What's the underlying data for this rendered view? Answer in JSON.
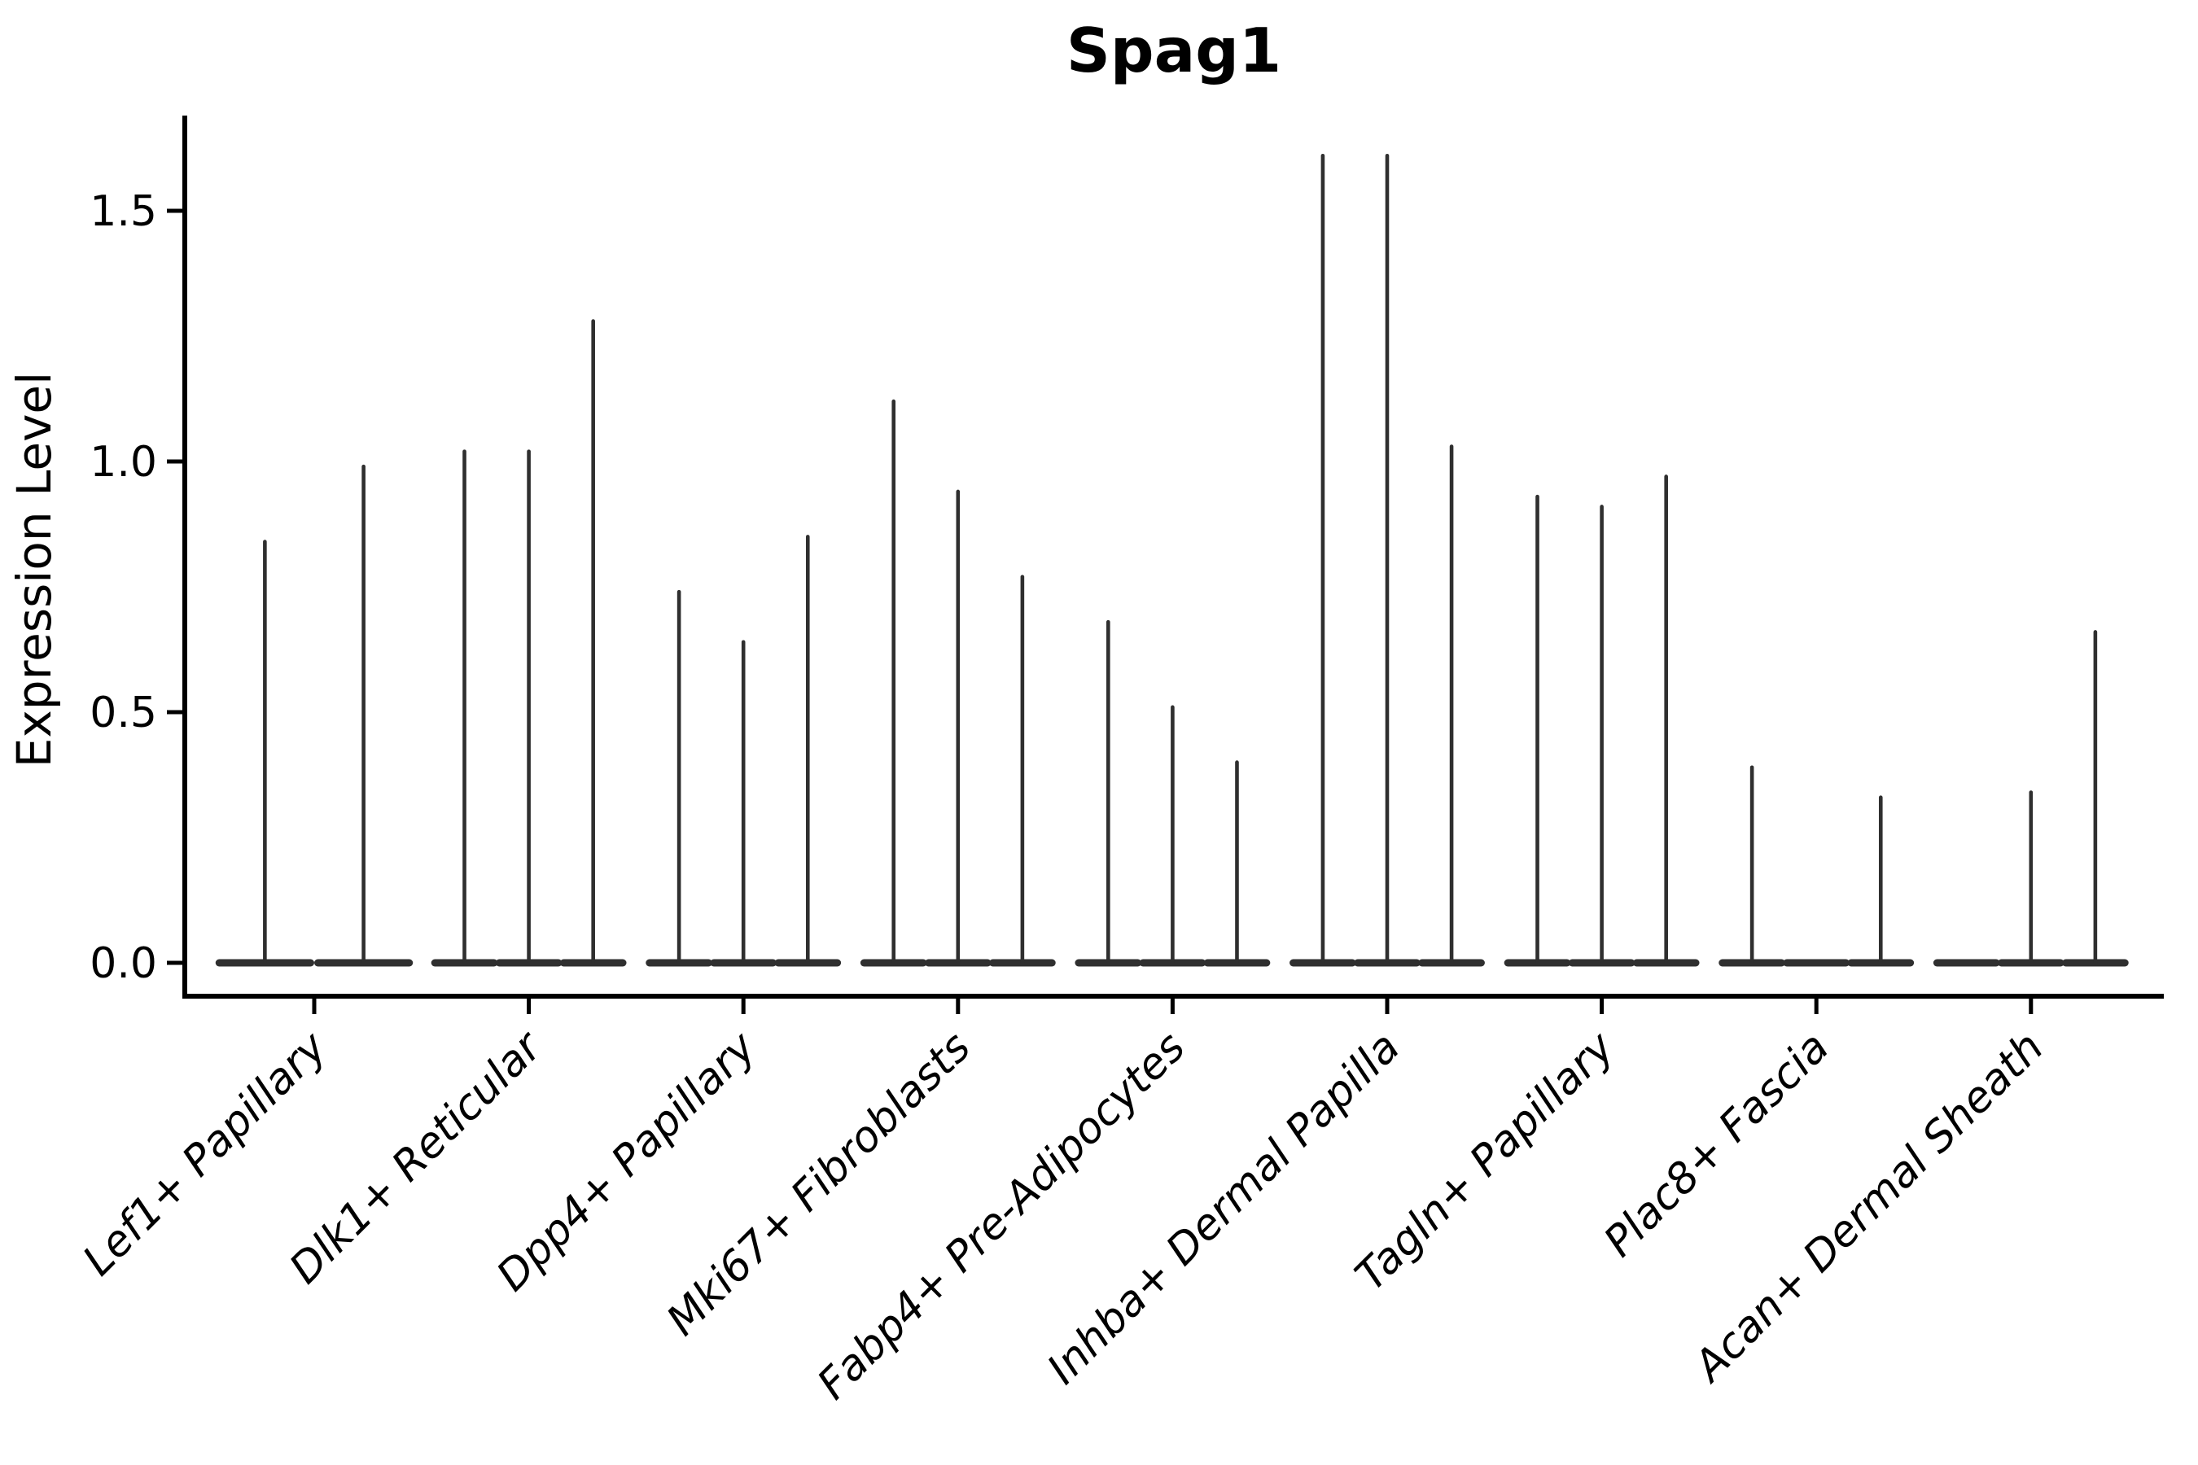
{
  "title": "Spag1",
  "y_axis": {
    "label": "Expression Level",
    "ticks": [
      {
        "label": "0.0",
        "value": 0.0
      },
      {
        "label": "0.5",
        "value": 0.5
      },
      {
        "label": "1.0",
        "value": 1.0
      },
      {
        "label": "1.5",
        "value": 1.5
      }
    ]
  },
  "chart_data": {
    "type": "violin",
    "title": "Spag1",
    "xlabel": "",
    "ylabel": "Expression Level",
    "ylim": [
      -0.07,
      1.69
    ],
    "yticks": [
      0.0,
      0.5,
      1.0,
      1.5
    ],
    "grid": false,
    "legend": null,
    "categories": [
      "Lef1+ Papillary",
      "Dlk1+ Reticular",
      "Dpp4+ Papillary",
      "Mki67+ Fibroblasts",
      "Fabp4+ Pre-Adipocytes",
      "Inhba+ Dermal Papilla",
      "Tagln+ Papillary",
      "Plac8+ Fascia",
      "Acan+ Dermal Sheath"
    ],
    "violin_description": "Each category shows 2-3 thin violins: a wide flat density bulge at expression 0 and a thin spike rising to the max expression value; peak_max 0 means a flat violin with no spike.",
    "violins": [
      {
        "category": "Lef1+ Papillary",
        "sub_violins": [
          {
            "offset": -0.23,
            "width": 0.46,
            "peak_max": 0.84
          },
          {
            "offset": 0.23,
            "width": 0.46,
            "peak_max": 0.99
          }
        ]
      },
      {
        "category": "Dlk1+ Reticular",
        "sub_violins": [
          {
            "offset": -0.3,
            "width": 0.31,
            "peak_max": 1.02
          },
          {
            "offset": 0.0,
            "width": 0.31,
            "peak_max": 1.02
          },
          {
            "offset": 0.3,
            "width": 0.31,
            "peak_max": 1.28
          }
        ]
      },
      {
        "category": "Dpp4+ Papillary",
        "sub_violins": [
          {
            "offset": -0.3,
            "width": 0.31,
            "peak_max": 0.74
          },
          {
            "offset": 0.0,
            "width": 0.31,
            "peak_max": 0.64
          },
          {
            "offset": 0.3,
            "width": 0.31,
            "peak_max": 0.85
          }
        ]
      },
      {
        "category": "Mki67+ Fibroblasts",
        "sub_violins": [
          {
            "offset": -0.3,
            "width": 0.31,
            "peak_max": 1.12
          },
          {
            "offset": 0.0,
            "width": 0.31,
            "peak_max": 0.94
          },
          {
            "offset": 0.3,
            "width": 0.31,
            "peak_max": 0.77
          }
        ]
      },
      {
        "category": "Fabp4+ Pre-Adipocytes",
        "sub_violins": [
          {
            "offset": -0.3,
            "width": 0.31,
            "peak_max": 0.68
          },
          {
            "offset": 0.0,
            "width": 0.31,
            "peak_max": 0.51
          },
          {
            "offset": 0.3,
            "width": 0.31,
            "peak_max": 0.4
          }
        ]
      },
      {
        "category": "Inhba+ Dermal Papilla",
        "sub_violins": [
          {
            "offset": -0.3,
            "width": 0.31,
            "peak_max": 1.61
          },
          {
            "offset": 0.0,
            "width": 0.31,
            "peak_max": 1.61
          },
          {
            "offset": 0.3,
            "width": 0.31,
            "peak_max": 1.03
          }
        ]
      },
      {
        "category": "Tagln+ Papillary",
        "sub_violins": [
          {
            "offset": -0.3,
            "width": 0.31,
            "peak_max": 0.93
          },
          {
            "offset": 0.0,
            "width": 0.31,
            "peak_max": 0.91
          },
          {
            "offset": 0.3,
            "width": 0.31,
            "peak_max": 0.97
          }
        ]
      },
      {
        "category": "Plac8+ Fascia",
        "sub_violins": [
          {
            "offset": -0.3,
            "width": 0.31,
            "peak_max": 0.39
          },
          {
            "offset": 0.0,
            "width": 0.31,
            "peak_max": 0.0
          },
          {
            "offset": 0.3,
            "width": 0.31,
            "peak_max": 0.33
          }
        ]
      },
      {
        "category": "Acan+ Dermal Sheath",
        "sub_violins": [
          {
            "offset": -0.3,
            "width": 0.31,
            "peak_max": 0.0
          },
          {
            "offset": 0.0,
            "width": 0.31,
            "peak_max": 0.34
          },
          {
            "offset": 0.3,
            "width": 0.31,
            "peak_max": 0.66
          }
        ]
      }
    ]
  },
  "colors": {
    "violin": "#2f2f2f",
    "axis": "#000000",
    "text": "#000000",
    "background": "#ffffff"
  }
}
